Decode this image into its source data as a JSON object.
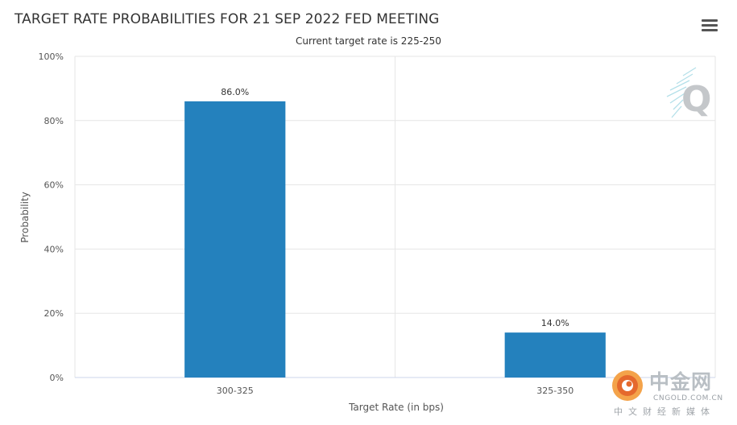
{
  "chart_data": {
    "type": "bar",
    "title": "TARGET RATE PROBABILITIES FOR 21 SEP 2022 FED MEETING",
    "subtitle": "Current target rate is 225-250",
    "categories": [
      "300-325",
      "325-350"
    ],
    "values": [
      86.0,
      14.0
    ],
    "value_labels": [
      "86.0%",
      "14.0%"
    ],
    "xlabel": "Target Rate (in bps)",
    "ylabel": "Probability",
    "ylim": [
      0,
      100
    ],
    "yticks": [
      "0%",
      "20%",
      "40%",
      "60%",
      "80%",
      "100%"
    ],
    "ytick_values": [
      0,
      20,
      40,
      60,
      80,
      100
    ],
    "grid": true,
    "bar_color": "#2481bd"
  },
  "watermark": {
    "brand_name": "中金网",
    "brand_domain": "CNGOLD.COM.CN",
    "brand_tagline": "中文财经新媒体"
  }
}
